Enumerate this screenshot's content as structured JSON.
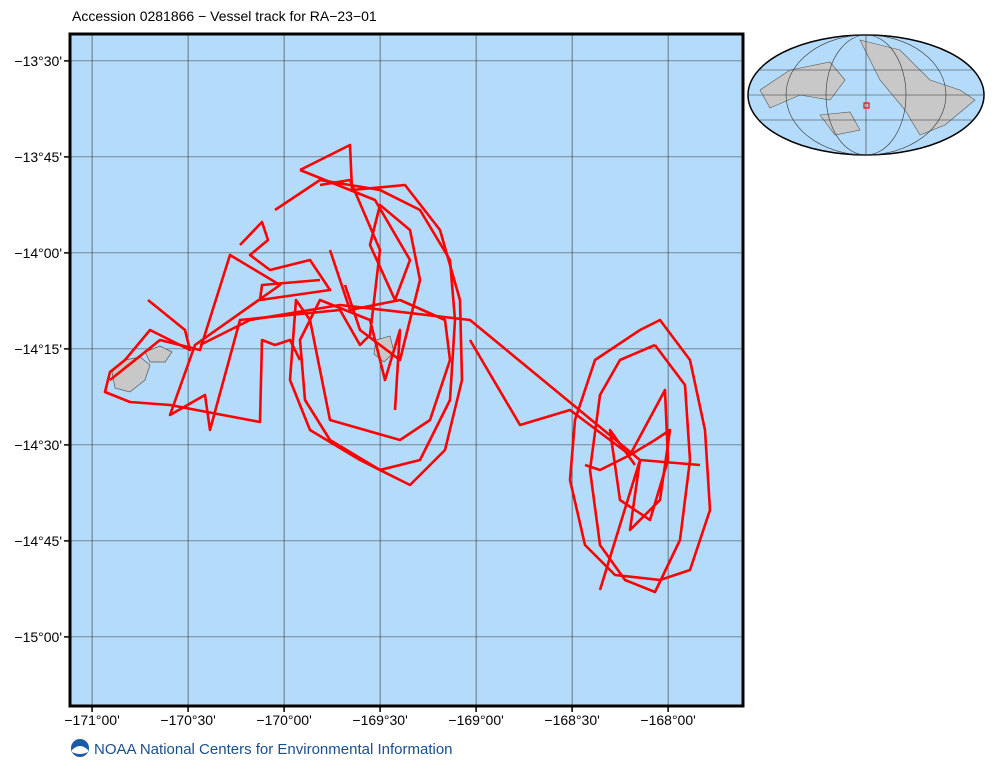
{
  "chart_data": {
    "type": "map",
    "title": "Accession 0281866 − Vessel track for RA−23−01",
    "xlim": [
      -171.115,
      -167.61
    ],
    "ylim": [
      -15.18,
      -13.43
    ],
    "xticks": [
      {
        "value": -171,
        "label": "−171°00'"
      },
      {
        "value": -170.5,
        "label": "−170°30'"
      },
      {
        "value": -170,
        "label": "−170°00'"
      },
      {
        "value": -169.5,
        "label": "−169°30'"
      },
      {
        "value": -169,
        "label": "−169°00'"
      },
      {
        "value": -168.5,
        "label": "−168°30'"
      },
      {
        "value": -168,
        "label": "−168°00'"
      }
    ],
    "yticks": [
      {
        "value": -13.5,
        "label": "−13°30'"
      },
      {
        "value": -13.75,
        "label": "−13°45'"
      },
      {
        "value": -14,
        "label": "−14°00'"
      },
      {
        "value": -14.25,
        "label": "−14°15'"
      },
      {
        "value": -14.5,
        "label": "−14°30'"
      },
      {
        "value": -14.75,
        "label": "−14°45'"
      },
      {
        "value": -15,
        "label": "−15°00'"
      }
    ],
    "track_color": "#ff0000",
    "ocean_color": "#b4dcfa"
  },
  "footer": "NOAA National Centers for Environmental Information"
}
